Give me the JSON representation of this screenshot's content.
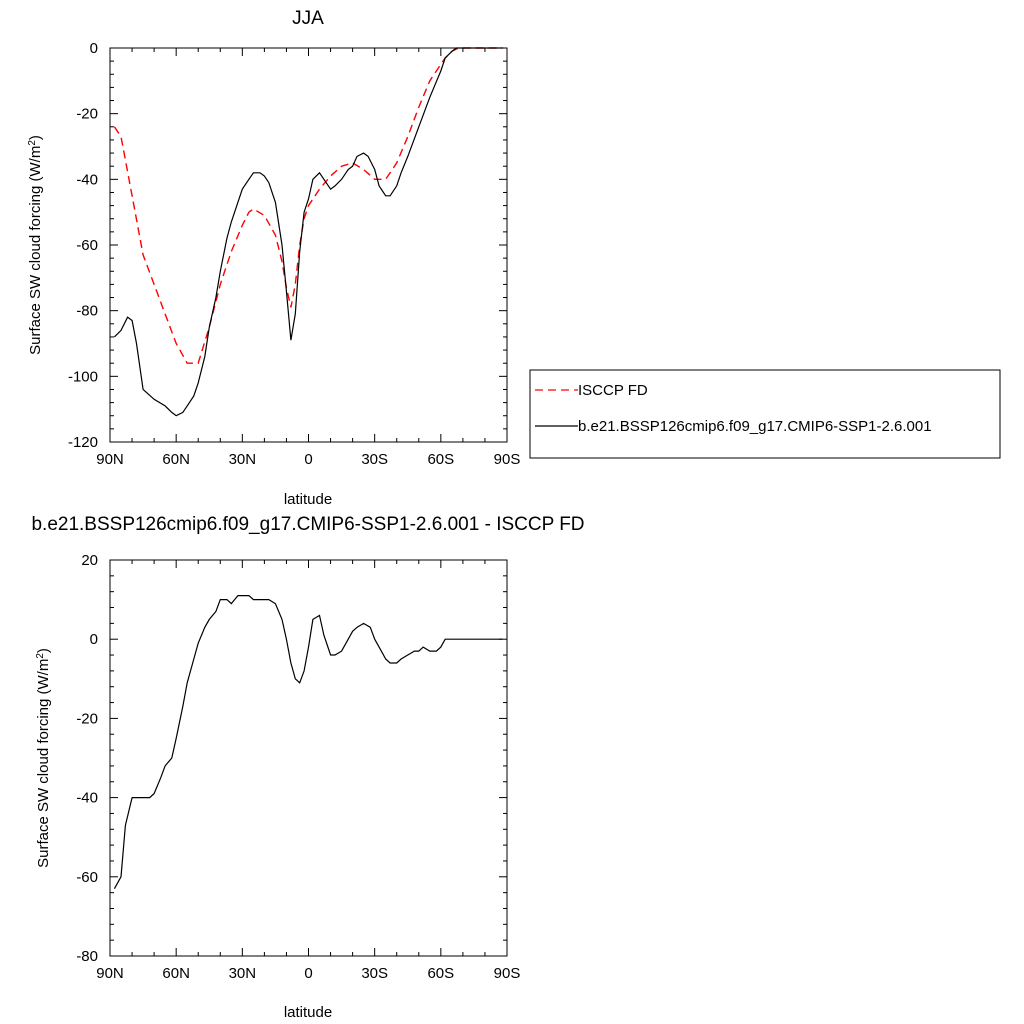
{
  "chart_data": [
    {
      "type": "line",
      "title": "JJA",
      "xlabel": "latitude",
      "ylabel": "Surface SW cloud forcing (W/m",
      "ylabel_sup": "2",
      "ylabel_tail": ")",
      "xlim": [
        -90,
        90
      ],
      "ylim": [
        -120,
        0
      ],
      "xticks": [
        {
          "value": -90,
          "label": "90N"
        },
        {
          "value": -60,
          "label": "60N"
        },
        {
          "value": -30,
          "label": "30N"
        },
        {
          "value": 0,
          "label": "0"
        },
        {
          "value": 30,
          "label": "30S"
        },
        {
          "value": 60,
          "label": "60S"
        },
        {
          "value": 90,
          "label": "90S"
        }
      ],
      "yticks": [
        0,
        -20,
        -40,
        -60,
        -80,
        -100,
        -120
      ],
      "legend": "outside-right",
      "series": [
        {
          "name": "ISCCP FD",
          "color": "#ff0000",
          "dash": "dashed",
          "x": [
            -88,
            -85,
            -80,
            -75,
            -70,
            -65,
            -60,
            -55,
            -50,
            -45,
            -40,
            -35,
            -30,
            -27,
            -25,
            -20,
            -15,
            -12,
            -10,
            -8,
            -6,
            -4,
            -2,
            0,
            2,
            5,
            10,
            15,
            20,
            25,
            30,
            35,
            40,
            45,
            50,
            55,
            60,
            62,
            65,
            68,
            70,
            75,
            80,
            85,
            88
          ],
          "y": [
            -24,
            -27,
            -45,
            -63,
            -72,
            -81,
            -90,
            -96,
            -96,
            -85,
            -72,
            -62,
            -54,
            -50,
            -49,
            -51,
            -57,
            -65,
            -73,
            -79,
            -72,
            -60,
            -52,
            -48,
            -46,
            -43,
            -39,
            -36,
            -35,
            -37,
            -40,
            -40,
            -35,
            -27,
            -18,
            -10,
            -5,
            -3,
            -1,
            0,
            0,
            0,
            0,
            0,
            0
          ]
        },
        {
          "name": "b.e21.BSSP126cmip6.f09_g17.CMIP6-SSP1-2.6.001",
          "color": "#000000",
          "dash": "solid",
          "x": [
            -88,
            -85,
            -82,
            -80,
            -78,
            -75,
            -70,
            -65,
            -62,
            -60,
            -57,
            -55,
            -52,
            -50,
            -47,
            -45,
            -42,
            -40,
            -37,
            -35,
            -32,
            -30,
            -27,
            -25,
            -22,
            -20,
            -18,
            -15,
            -12,
            -10,
            -8,
            -6,
            -4,
            -2,
            0,
            2,
            5,
            8,
            10,
            12,
            15,
            18,
            20,
            22,
            25,
            27,
            30,
            32,
            35,
            37,
            40,
            42,
            45,
            50,
            55,
            60,
            62,
            65,
            67,
            70,
            75,
            80,
            85,
            88
          ],
          "y": [
            -88,
            -86,
            -82,
            -83,
            -90,
            -104,
            -107,
            -109,
            -111,
            -112,
            -111,
            -109,
            -106,
            -102,
            -94,
            -85,
            -76,
            -68,
            -58,
            -53,
            -47,
            -43,
            -40,
            -38,
            -38,
            -39,
            -41,
            -47,
            -60,
            -74,
            -89,
            -81,
            -62,
            -50,
            -46,
            -40,
            -38,
            -41,
            -43,
            -42,
            -40,
            -37,
            -36,
            -33,
            -32,
            -33,
            -37,
            -42,
            -45,
            -45,
            -42,
            -38,
            -33,
            -24,
            -15,
            -7,
            -3,
            -1,
            0,
            0,
            0,
            0,
            0,
            0
          ]
        }
      ]
    },
    {
      "type": "line",
      "title": "b.e21.BSSP126cmip6.f09_g17.CMIP6-SSP1-2.6.001 - ISCCP FD",
      "xlabel": "latitude",
      "ylabel": "Surface SW cloud forcing (W/m",
      "ylabel_sup": "2",
      "ylabel_tail": ")",
      "xlim": [
        -90,
        90
      ],
      "ylim": [
        -80,
        20
      ],
      "xticks": [
        {
          "value": -90,
          "label": "90N"
        },
        {
          "value": -60,
          "label": "60N"
        },
        {
          "value": -30,
          "label": "30N"
        },
        {
          "value": 0,
          "label": "0"
        },
        {
          "value": 30,
          "label": "30S"
        },
        {
          "value": 60,
          "label": "60S"
        },
        {
          "value": 90,
          "label": "90S"
        }
      ],
      "yticks": [
        20,
        0,
        -20,
        -40,
        -60,
        -80
      ],
      "series": [
        {
          "color": "#000000",
          "dash": "solid",
          "x": [
            -88,
            -85,
            -83,
            -80,
            -78,
            -75,
            -72,
            -70,
            -67,
            -65,
            -62,
            -60,
            -57,
            -55,
            -52,
            -50,
            -47,
            -45,
            -42,
            -40,
            -37,
            -35,
            -32,
            -30,
            -27,
            -25,
            -22,
            -20,
            -18,
            -15,
            -12,
            -10,
            -8,
            -6,
            -4,
            -2,
            0,
            2,
            5,
            7,
            10,
            12,
            15,
            18,
            20,
            22,
            25,
            28,
            30,
            32,
            35,
            37,
            40,
            42,
            45,
            48,
            50,
            52,
            55,
            58,
            60,
            62,
            65,
            67,
            70,
            75,
            80,
            85,
            88
          ],
          "y": [
            -63,
            -60,
            -47,
            -40,
            -40,
            -40,
            -40,
            -39,
            -35,
            -32,
            -30,
            -25,
            -17,
            -11,
            -5,
            -1,
            3,
            5,
            7,
            10,
            10,
            9,
            11,
            11,
            11,
            10,
            10,
            10,
            10,
            9,
            5,
            0,
            -6,
            -10,
            -11,
            -8,
            -2,
            5,
            6,
            1,
            -4,
            -4,
            -3,
            0,
            2,
            3,
            4,
            3,
            0,
            -2,
            -5,
            -6,
            -6,
            -5,
            -4,
            -3,
            -3,
            -2,
            -3,
            -3,
            -2,
            0,
            0,
            0,
            0,
            0,
            0,
            0,
            0
          ]
        }
      ]
    }
  ],
  "legend": {
    "entries": [
      "ISCCP FD",
      "b.e21.BSSP126cmip6.f09_g17.CMIP6-SSP1-2.6.001"
    ]
  }
}
